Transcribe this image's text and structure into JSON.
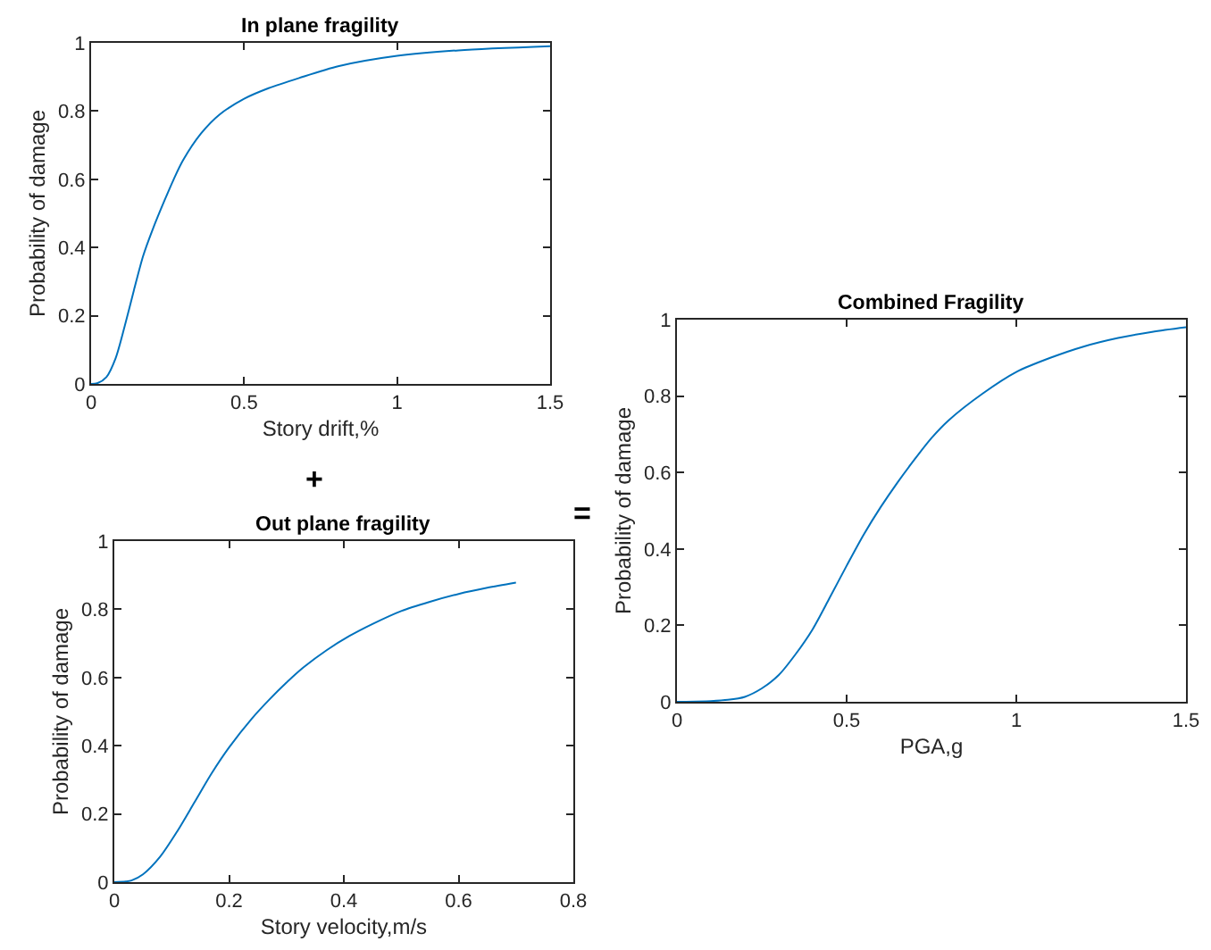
{
  "chart_data": [
    {
      "type": "line",
      "title": "In plane fragility",
      "xlabel": "Story drift,%",
      "ylabel": "Probability of damage",
      "x": [
        0,
        0.02,
        0.05,
        0.08,
        0.11,
        0.14,
        0.17,
        0.2,
        0.24,
        0.27,
        0.3,
        0.36,
        0.42,
        0.5,
        0.58,
        0.68,
        0.81,
        1.0,
        1.2,
        1.5
      ],
      "series": [
        {
          "color": "#0072bd",
          "values": [
            0,
            0.002,
            0.02,
            0.075,
            0.17,
            0.275,
            0.375,
            0.45,
            0.538,
            0.6,
            0.655,
            0.735,
            0.79,
            0.836,
            0.867,
            0.897,
            0.932,
            0.962,
            0.978,
            0.99
          ]
        }
      ],
      "xlim": [
        0,
        1.5
      ],
      "xticks": [
        0,
        0.5,
        1,
        1.5
      ],
      "ylim": [
        0,
        1
      ],
      "yticks": [
        0,
        0.2,
        0.4,
        0.6,
        0.8,
        1
      ]
    },
    {
      "type": "line",
      "title": "Out plane fragility",
      "xlabel": "Story velocity,m/s",
      "ylabel": "Probability of damage",
      "annotations": [
        "+"
      ],
      "x": [
        0,
        0.02,
        0.03,
        0.05,
        0.08,
        0.11,
        0.14,
        0.17,
        0.2,
        0.24,
        0.27,
        0.3,
        0.33,
        0.37,
        0.41,
        0.45,
        0.5,
        0.55,
        0.6,
        0.65,
        0.7
      ],
      "series": [
        {
          "color": "#0072bd",
          "values": [
            0,
            0.002,
            0.005,
            0.023,
            0.075,
            0.15,
            0.235,
            0.32,
            0.395,
            0.48,
            0.535,
            0.585,
            0.63,
            0.68,
            0.722,
            0.757,
            0.795,
            0.822,
            0.845,
            0.863,
            0.878
          ]
        }
      ],
      "xlim": [
        0,
        0.8
      ],
      "xticks": [
        0,
        0.2,
        0.4,
        0.6,
        0.8
      ],
      "ylim": [
        0,
        1
      ],
      "yticks": [
        0,
        0.2,
        0.4,
        0.6,
        0.8,
        1
      ]
    },
    {
      "type": "line",
      "title": "Combined Fragility",
      "xlabel": "PGA,g",
      "ylabel": "Probability of damage",
      "annotations": [
        "="
      ],
      "x": [
        0,
        0.1,
        0.15,
        0.2,
        0.25,
        0.3,
        0.35,
        0.4,
        0.45,
        0.5,
        0.55,
        0.6,
        0.65,
        0.7,
        0.75,
        0.8,
        0.9,
        1.0,
        1.1,
        1.2,
        1.3,
        1.4,
        1.5
      ],
      "series": [
        {
          "color": "#0072bd",
          "values": [
            0,
            0.002,
            0.005,
            0.013,
            0.035,
            0.07,
            0.125,
            0.19,
            0.272,
            0.356,
            0.437,
            0.509,
            0.574,
            0.634,
            0.69,
            0.736,
            0.806,
            0.863,
            0.9,
            0.93,
            0.952,
            0.968,
            0.98
          ]
        }
      ],
      "xlim": [
        0,
        1.5
      ],
      "xticks": [
        0,
        0.5,
        1,
        1.5
      ],
      "ylim": [
        0,
        1
      ],
      "yticks": [
        0,
        0.2,
        0.4,
        0.6,
        0.8,
        1
      ]
    }
  ]
}
